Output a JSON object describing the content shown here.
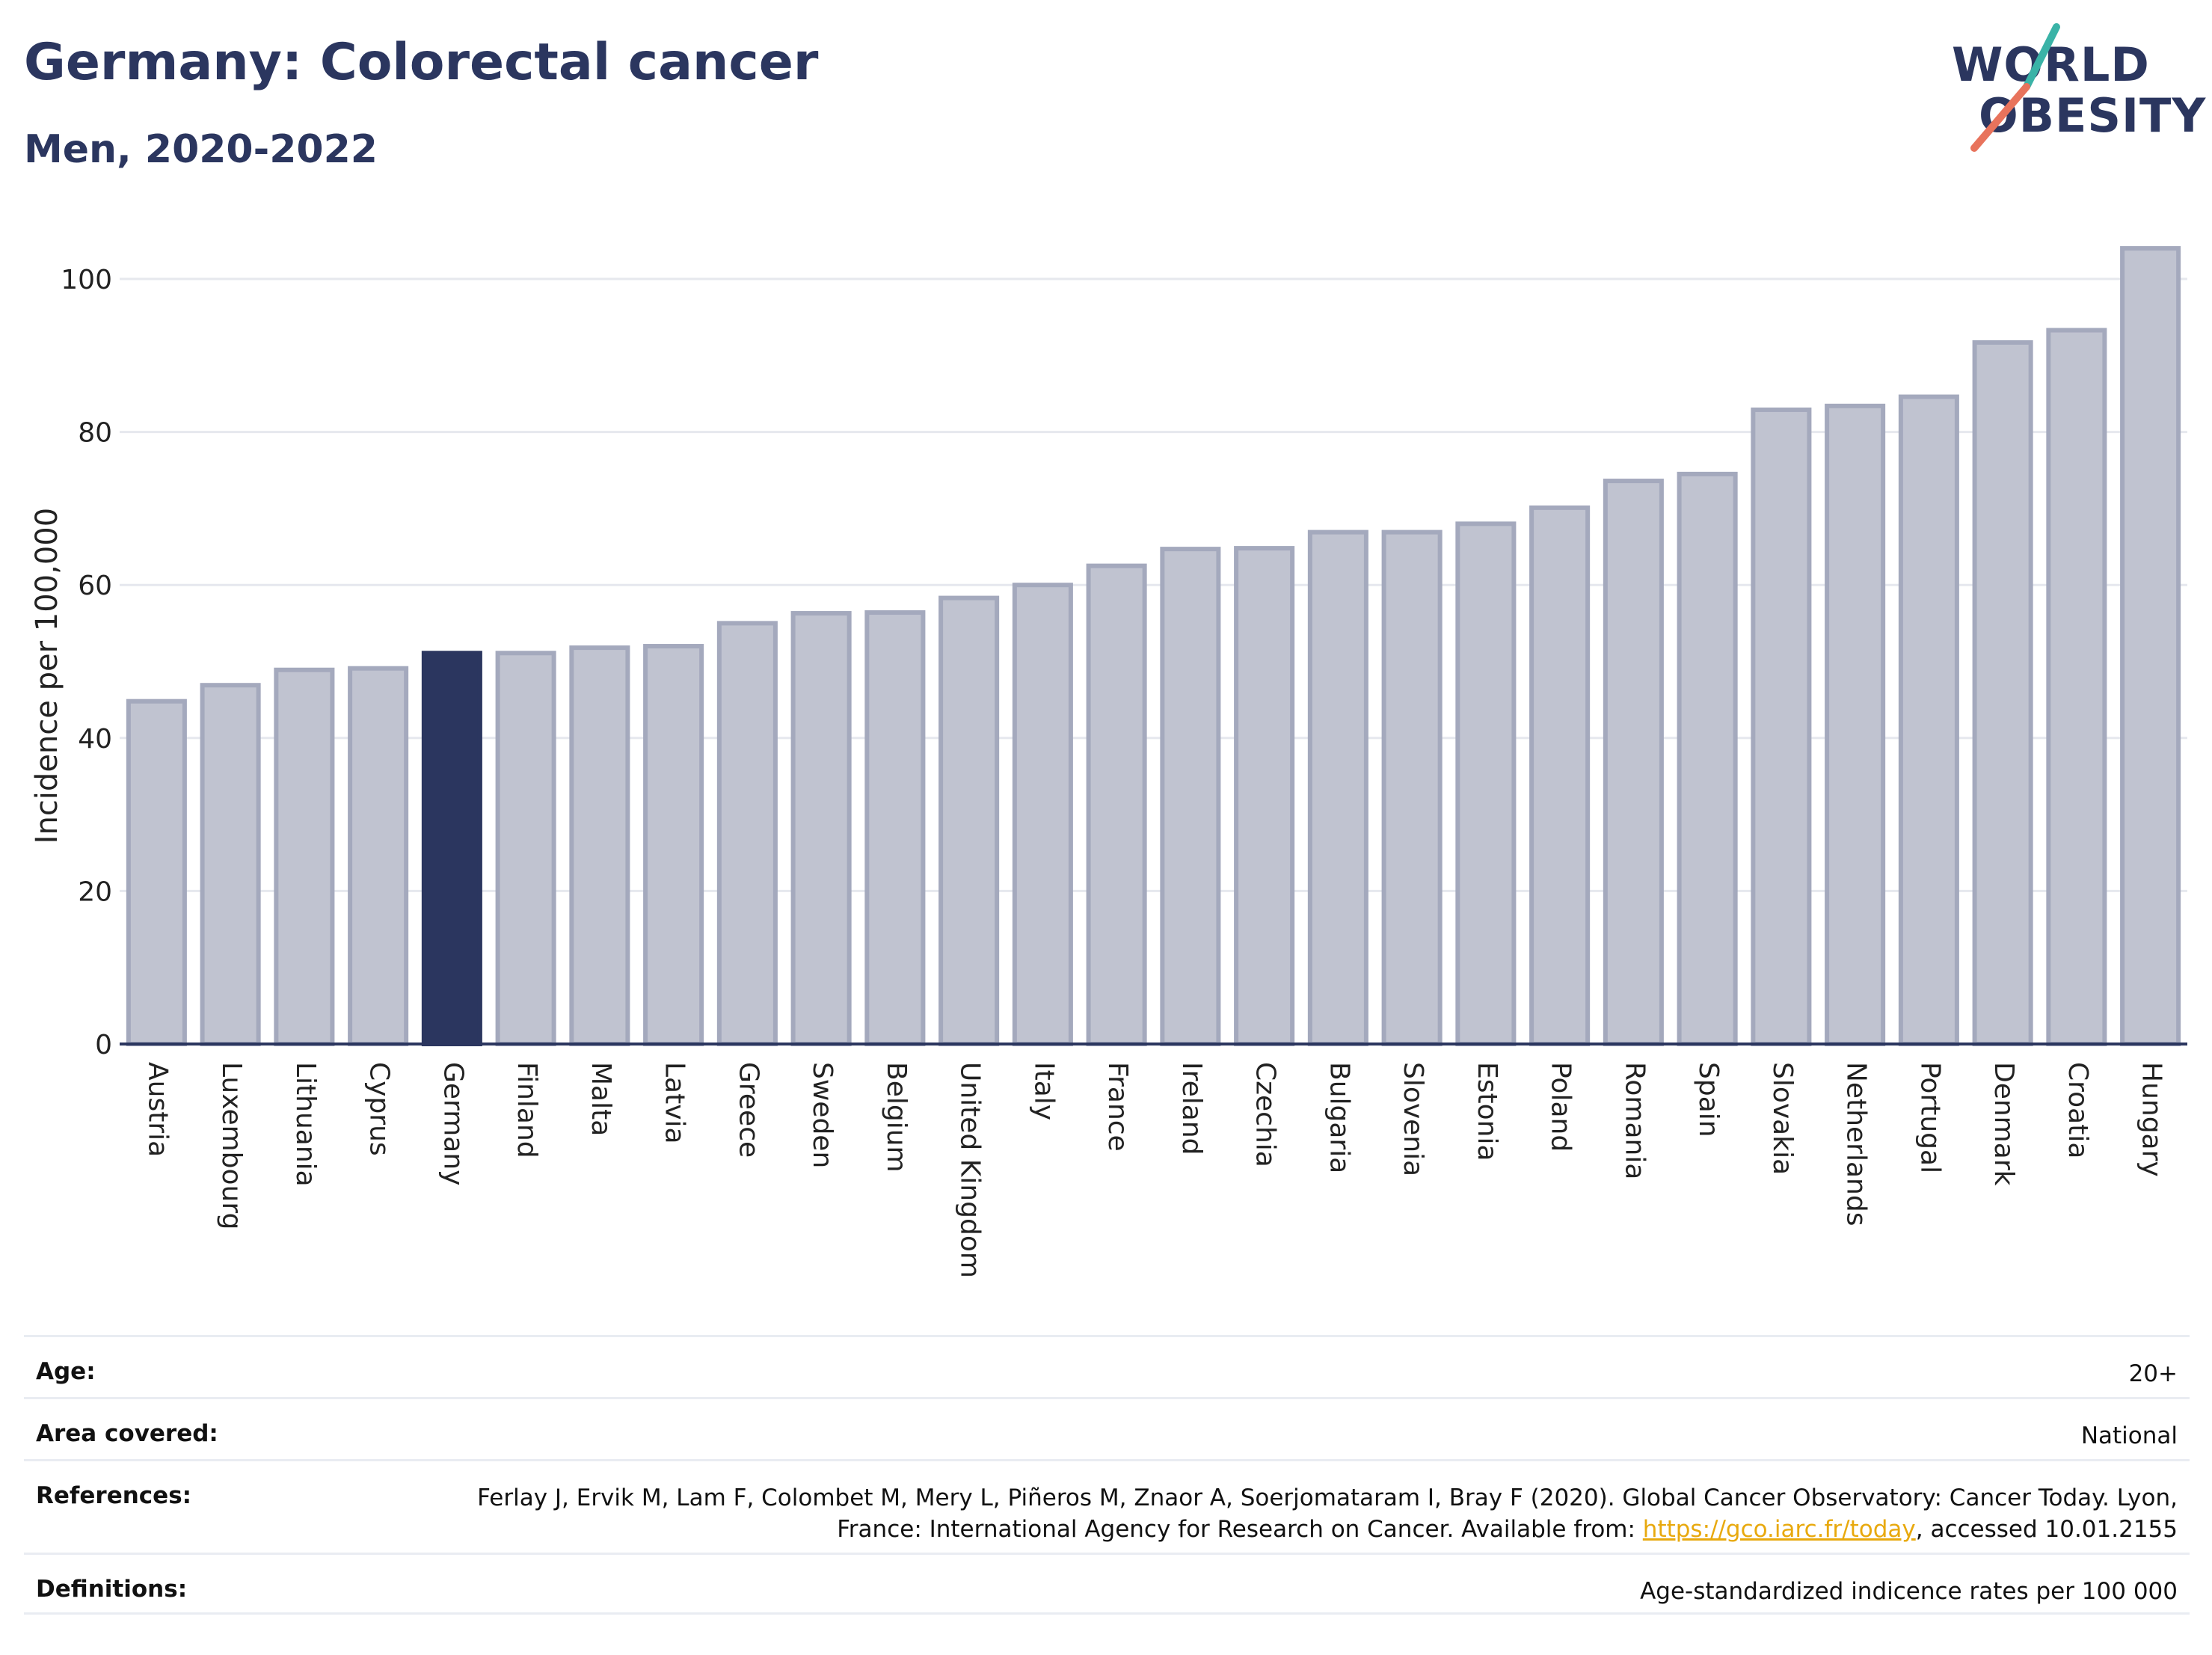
{
  "header": {
    "title": "Germany: Colorectal cancer",
    "subtitle": "Men, 2020-2022",
    "logo_line1": "WORLD",
    "logo_line2": "OBESITY"
  },
  "colors": {
    "highlight": "#2b365f",
    "bar_fill": "#c0c3d0",
    "bar_stroke": "#a4a9bd",
    "grid": "#e6e8ee",
    "logo_teal": "#3ab3a7",
    "logo_coral": "#e8735c"
  },
  "chart_data": {
    "type": "bar",
    "ylabel": "Incidence per 100,000",
    "ylim": [
      0,
      108
    ],
    "yticks": [
      0,
      20,
      40,
      60,
      80,
      100
    ],
    "grid": true,
    "highlight_category": "Germany",
    "categories": [
      "Austria",
      "Luxembourg",
      "Lithuania",
      "Cyprus",
      "Germany",
      "Finland",
      "Malta",
      "Latvia",
      "Greece",
      "Sweden",
      "Belgium",
      "United Kingdom",
      "Italy",
      "France",
      "Ireland",
      "Czechia",
      "Bulgaria",
      "Slovenia",
      "Estonia",
      "Poland",
      "Romania",
      "Spain",
      "Slovakia",
      "Netherlands",
      "Portugal",
      "Denmark",
      "Croatia",
      "Hungary"
    ],
    "values": [
      44.8,
      46.9,
      48.9,
      49.1,
      51.1,
      51.1,
      51.8,
      52.0,
      55.0,
      56.3,
      56.4,
      58.3,
      60.0,
      62.5,
      64.7,
      64.8,
      66.9,
      66.9,
      68.0,
      70.1,
      73.6,
      74.5,
      82.9,
      83.4,
      84.6,
      91.7,
      93.3,
      104.0
    ]
  },
  "meta": {
    "age_label": "Age:",
    "age_value": "20+",
    "area_label": "Area covered:",
    "area_value": "National",
    "references_label": "References:",
    "references_text_1": "Ferlay J, Ervik M, Lam F, Colombet M, Mery L, Piñeros M, Znaor A, Soerjomataram I, Bray F (2020). Global Cancer Observatory: Cancer Today. Lyon, France: International Agency for Research on Cancer. Available from: ",
    "references_link": "https://gco.iarc.fr/today",
    "references_text_2": ", accessed 10.01.2155",
    "definitions_label": "Definitions:",
    "definitions_value": "Age-standardized indicence rates per 100 000"
  }
}
